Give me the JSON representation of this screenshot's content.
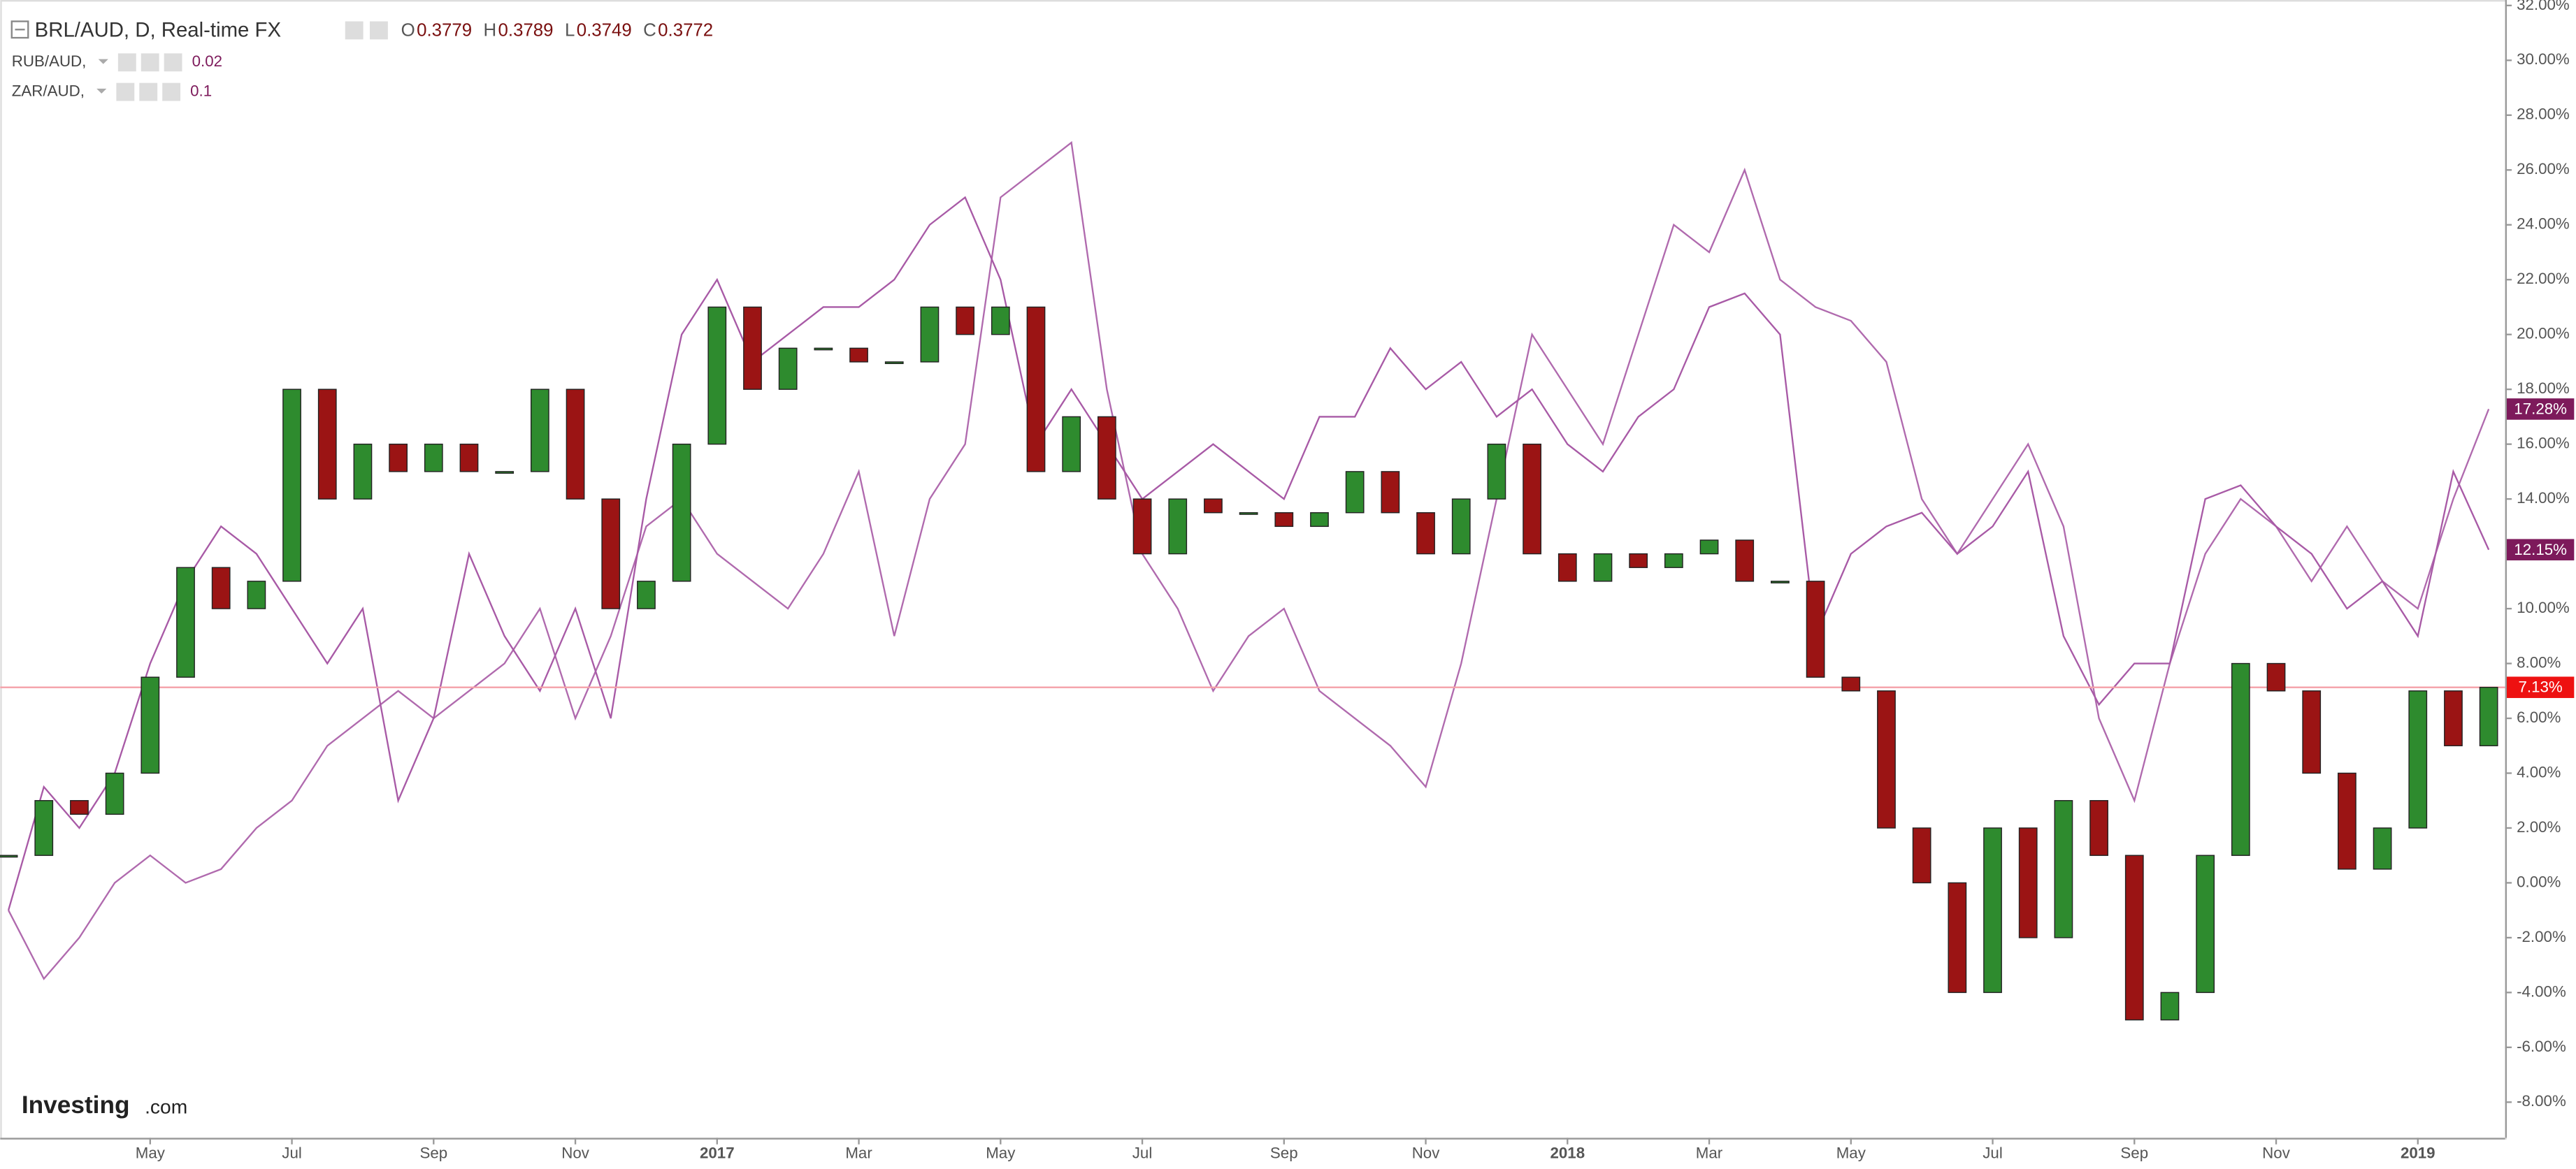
{
  "chart_data": {
    "type": "candlestick",
    "title": "BRL/AUD, D, Real-time FX",
    "ohlc": [
      {
        "label": "O",
        "value": 0.3779
      },
      {
        "label": "H",
        "value": 0.3789
      },
      {
        "label": "L",
        "value": 0.3749
      },
      {
        "label": "C",
        "value": 0.3772
      }
    ],
    "watermark": {
      "brand": "Investing",
      "suffix": ".com"
    },
    "categories": [
      null,
      null,
      null,
      null,
      "May",
      null,
      null,
      null,
      "Jul",
      null,
      null,
      null,
      "Sep",
      null,
      null,
      null,
      "Nov",
      null,
      null,
      null,
      "2017",
      null,
      null,
      null,
      "Mar",
      null,
      null,
      null,
      "May",
      null,
      null,
      null,
      "Jul",
      null,
      null,
      null,
      "Sep",
      null,
      null,
      null,
      "Nov",
      null,
      null,
      null,
      "2018",
      null,
      null,
      null,
      "Mar",
      null,
      null,
      null,
      "May",
      null,
      null,
      null,
      "Jul",
      null,
      null,
      null,
      "Sep",
      null,
      null,
      null,
      "Nov",
      null,
      null,
      null,
      "2019",
      null,
      null
    ],
    "ylim": [
      -9.3,
      32.2
    ],
    "yticks": [
      {
        "value": 32,
        "label": "32.00%"
      },
      {
        "value": 30,
        "label": "30.00%"
      },
      {
        "value": 28,
        "label": "28.00%"
      },
      {
        "value": 26,
        "label": "26.00%"
      },
      {
        "value": 24,
        "label": "24.00%"
      },
      {
        "value": 22,
        "label": "22.00%"
      },
      {
        "value": 20,
        "label": "20.00%"
      },
      {
        "value": 18,
        "label": "18.00%"
      },
      {
        "value": 16,
        "label": "16.00%"
      },
      {
        "value": 14,
        "label": "14.00%"
      },
      {
        "value": 12,
        "label": "12.00%"
      },
      {
        "value": 10,
        "label": "10.00%"
      },
      {
        "value": 8,
        "label": "8.00%"
      },
      {
        "value": 6,
        "label": "6.00%"
      },
      {
        "value": 4,
        "label": "4.00%"
      },
      {
        "value": 2,
        "label": "2.00%"
      },
      {
        "value": 0,
        "label": "0.00%"
      },
      {
        "value": -2,
        "label": "-2.00%"
      },
      {
        "value": -4,
        "label": "-4.00%"
      },
      {
        "value": -6,
        "label": "-6.00%"
      },
      {
        "value": -8,
        "label": "-8.00%"
      }
    ],
    "series": [
      {
        "name": "BRL/AUD",
        "kind": "candle",
        "up_color": "#2e8b2e",
        "down_color": "#9b1414",
        "line_color": "#f4a0a8",
        "label_color": "#ee1111",
        "last_label": "7.13%",
        "values": [
          1,
          3,
          2.5,
          4,
          7.5,
          11.5,
          10,
          11,
          18,
          14,
          16,
          15,
          16,
          15,
          15,
          18,
          14,
          10,
          11,
          16,
          21,
          18,
          19.5,
          19.5,
          19,
          19,
          21,
          20,
          21,
          15,
          17,
          14,
          12,
          14,
          13.5,
          13.5,
          13,
          13.5,
          15,
          13.5,
          12,
          14,
          16,
          12,
          11,
          12,
          11.5,
          12,
          12.5,
          11,
          11,
          7.5,
          7,
          2,
          0,
          -4,
          2,
          -2,
          3,
          1,
          -5,
          -4,
          1,
          8,
          7,
          4,
          0.5,
          2,
          7,
          5,
          7.13
        ]
      },
      {
        "name": "RUB/AUD",
        "kind": "line",
        "color": "#b06aae",
        "label_color": "#7d1a5b",
        "legend_value": 0.02,
        "last_label": "17.28%",
        "values": [
          -1,
          -3.5,
          -2,
          0,
          1,
          0,
          0.5,
          2,
          3,
          5,
          6,
          7,
          6,
          7,
          8,
          10,
          6,
          9,
          13,
          14,
          12,
          11,
          10,
          12,
          15,
          9,
          14,
          16,
          25,
          26,
          27,
          18,
          12,
          10,
          7,
          9,
          10,
          7,
          6,
          5,
          3.5,
          8,
          14,
          20,
          18,
          16,
          20,
          24,
          23,
          26,
          22,
          21,
          20.5,
          19,
          14,
          12,
          14,
          16,
          13,
          6,
          3,
          8,
          12,
          14,
          13,
          11,
          13,
          11,
          10,
          14,
          17.28
        ]
      },
      {
        "name": "ZAR/AUD",
        "kind": "line",
        "color": "#a85aa6",
        "label_color": "#7d1a5b",
        "legend_value": 0.1,
        "last_label": "12.15%",
        "values": [
          -1,
          3.5,
          2,
          4,
          8,
          11,
          13,
          12,
          10,
          8,
          10,
          3,
          6,
          12,
          9,
          7,
          10,
          6,
          14,
          20,
          22,
          19,
          20,
          21,
          21,
          22,
          24,
          25,
          22,
          16,
          18,
          16,
          14,
          15,
          16,
          15,
          14,
          17,
          17,
          19.5,
          18,
          19,
          17,
          18,
          16,
          15,
          17,
          18,
          21,
          21.5,
          20,
          9,
          12,
          13,
          13.5,
          12,
          13,
          15,
          9,
          6.5,
          8,
          8,
          14,
          14.5,
          13,
          12,
          10,
          11,
          9,
          15,
          12.15
        ]
      }
    ]
  }
}
